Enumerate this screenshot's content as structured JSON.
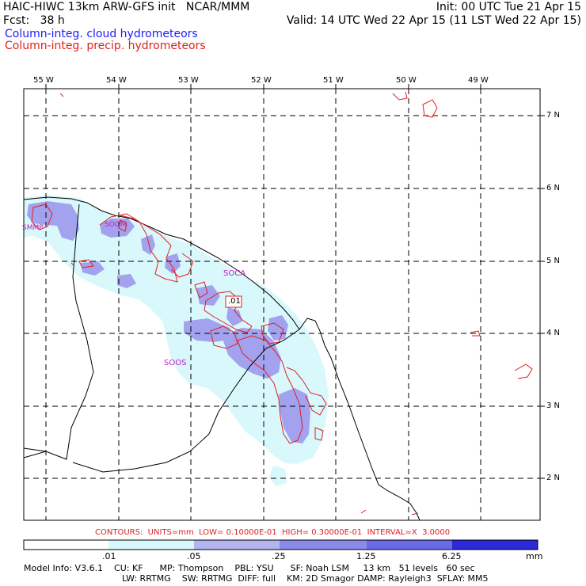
{
  "header": {
    "line1_left": "HAIC-HIWC 13km ARW-GFS init   NCAR/MMM",
    "line1_right": "Init: 00 UTC Tue 21 Apr 15",
    "line2_left": "Fcst:   38 h",
    "line2_right": "Valid: 14 UTC Wed 22 Apr 15 (11 LST Wed 22 Apr 15)",
    "field_cloud": "Column-integ. cloud hydrometeors",
    "field_precip": "Column-integ. precip. hydrometeors"
  },
  "colors": {
    "cloud_label": "#1a1aff",
    "precip_label": "#e02020",
    "shade_light": "#d8f8fc",
    "shade_mid": "#b4b4f0",
    "shade_dark": "#8a8ae8",
    "shade_deep": "#2a2ad8",
    "precip_contour": "#e02020",
    "station_label": "#c020c0"
  },
  "map": {
    "lon_labels": [
      "55 W",
      "54 W",
      "53 W",
      "52 W",
      "51 W",
      "50 W",
      "49 W"
    ],
    "lat_labels": [
      "7 N",
      "6 N",
      "5 N",
      "4 N",
      "3 N",
      "2 N"
    ],
    "stations": [
      "SMMP",
      "SOGM",
      "SOCA",
      "SOOS"
    ],
    "contour_value_label": ".01"
  },
  "contours_info": "CONTOURS:  UNITS=mm  LOW= 0.10000E-01  HIGH= 0.30000E-01  INTERVAL=X  3.0000",
  "colorbar": {
    "units": "mm",
    "tick_labels": [
      ".01",
      ".05",
      ".25",
      "1.25",
      "6.25"
    ]
  },
  "footer": {
    "line1": "Model Info: V3.6.1    CU: KF      MP: Thompson    PBL: YSU      SF: Noah LSM     13 km   51 levels   60 sec",
    "line2": "LW: RRTMG    SW: RRTMG  DIFF: full    KM: 2D Smagor DAMP: Rayleigh3  SFLAY: MM5"
  }
}
